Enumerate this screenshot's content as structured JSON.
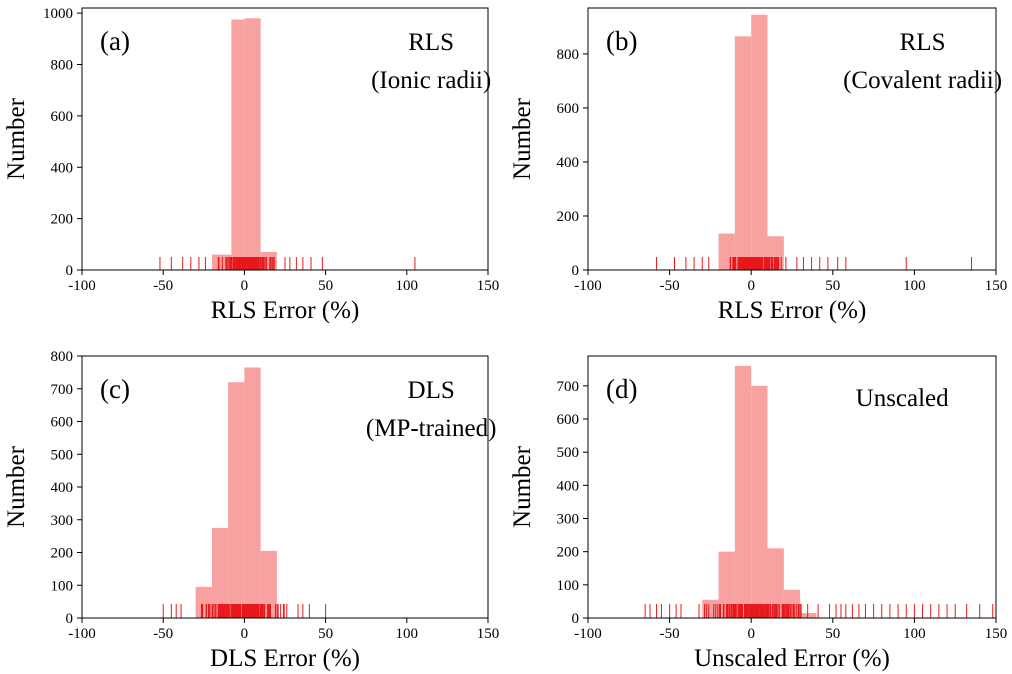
{
  "figure": {
    "bar_color": "#f7a1a1",
    "rug_color": "#e8191b"
  },
  "chart_data": [
    {
      "type": "bar",
      "panel_label": "(a)",
      "title": "RLS",
      "subtitle": "(Ionic radii)",
      "xlabel": "RLS Error (%)",
      "ylabel": "Number",
      "xlim": [
        -100,
        150
      ],
      "ylim": [
        0,
        1020
      ],
      "xticks": [
        "-100",
        "-50",
        "0",
        "50",
        "100",
        "150"
      ],
      "yticks": [
        "0",
        "200",
        "400",
        "600",
        "800",
        "1000"
      ],
      "bins": [
        {
          "x0": -20,
          "x1": -8,
          "value": 60
        },
        {
          "x0": -8,
          "x1": 0,
          "value": 975
        },
        {
          "x0": 0,
          "x1": 10,
          "value": 980
        },
        {
          "x0": 10,
          "x1": 20,
          "value": 70
        }
      ],
      "rug": {
        "range": [
          -18,
          22
        ],
        "outliers": [
          -52,
          -45,
          -38,
          -33,
          -28,
          -24,
          25,
          28,
          32,
          36,
          41,
          48,
          105
        ]
      }
    },
    {
      "type": "bar",
      "panel_label": "(b)",
      "title": "RLS",
      "subtitle": "(Covalent radii)",
      "xlabel": "RLS Error (%)",
      "ylabel": "Number",
      "xlim": [
        -100,
        150
      ],
      "ylim": [
        0,
        970
      ],
      "xticks": [
        "-100",
        "-50",
        "0",
        "50",
        "100",
        "150"
      ],
      "yticks": [
        "0",
        "200",
        "400",
        "600",
        "800"
      ],
      "bins": [
        {
          "x0": -20,
          "x1": -10,
          "value": 135
        },
        {
          "x0": -10,
          "x1": 0,
          "value": 865
        },
        {
          "x0": 0,
          "x1": 10,
          "value": 945
        },
        {
          "x0": 10,
          "x1": 20,
          "value": 125
        }
      ],
      "rug": {
        "range": [
          -22,
          25
        ],
        "outliers": [
          -58,
          -47,
          -40,
          -35,
          -30,
          -26,
          28,
          32,
          37,
          42,
          47,
          53,
          58,
          95,
          135
        ]
      }
    },
    {
      "type": "bar",
      "panel_label": "(c)",
      "title": "DLS",
      "subtitle": "(MP-trained)",
      "xlabel": "DLS Error (%)",
      "ylabel": "Number",
      "xlim": [
        -100,
        150
      ],
      "ylim": [
        0,
        800
      ],
      "xticks": [
        "-100",
        "-50",
        "0",
        "50",
        "100",
        "150"
      ],
      "yticks": [
        "0",
        "100",
        "200",
        "300",
        "400",
        "500",
        "600",
        "700",
        "800"
      ],
      "bins": [
        {
          "x0": -30,
          "x1": -20,
          "value": 95
        },
        {
          "x0": -20,
          "x1": -10,
          "value": 275
        },
        {
          "x0": -10,
          "x1": 0,
          "value": 720
        },
        {
          "x0": 0,
          "x1": 10,
          "value": 765
        },
        {
          "x0": 10,
          "x1": 20,
          "value": 205
        }
      ],
      "rug": {
        "range": [
          -35,
          30
        ],
        "outliers": [
          -50,
          -45,
          -42,
          -39,
          33,
          36,
          40,
          50
        ]
      }
    },
    {
      "type": "bar",
      "panel_label": "(d)",
      "title": "Unscaled",
      "subtitle": "",
      "xlabel": "Unscaled Error (%)",
      "ylabel": "Number",
      "xlim": [
        -100,
        150
      ],
      "ylim": [
        0,
        790
      ],
      "xticks": [
        "-100",
        "-50",
        "0",
        "50",
        "100",
        "150"
      ],
      "yticks": [
        "0",
        "100",
        "200",
        "300",
        "400",
        "500",
        "600",
        "700"
      ],
      "bins": [
        {
          "x0": -30,
          "x1": -20,
          "value": 55
        },
        {
          "x0": -20,
          "x1": -10,
          "value": 200
        },
        {
          "x0": -10,
          "x1": 0,
          "value": 760
        },
        {
          "x0": 0,
          "x1": 10,
          "value": 700
        },
        {
          "x0": 10,
          "x1": 20,
          "value": 210
        },
        {
          "x0": 20,
          "x1": 30,
          "value": 85
        },
        {
          "x0": 30,
          "x1": 40,
          "value": 15
        }
      ],
      "rug": {
        "range": [
          -40,
          45
        ],
        "outliers": [
          -65,
          -62,
          -58,
          -55,
          -50,
          -46,
          -43,
          48,
          52,
          55,
          58,
          62,
          66,
          70,
          75,
          80,
          85,
          90,
          95,
          100,
          105,
          110,
          115,
          120,
          125,
          132,
          140,
          148
        ]
      }
    }
  ]
}
